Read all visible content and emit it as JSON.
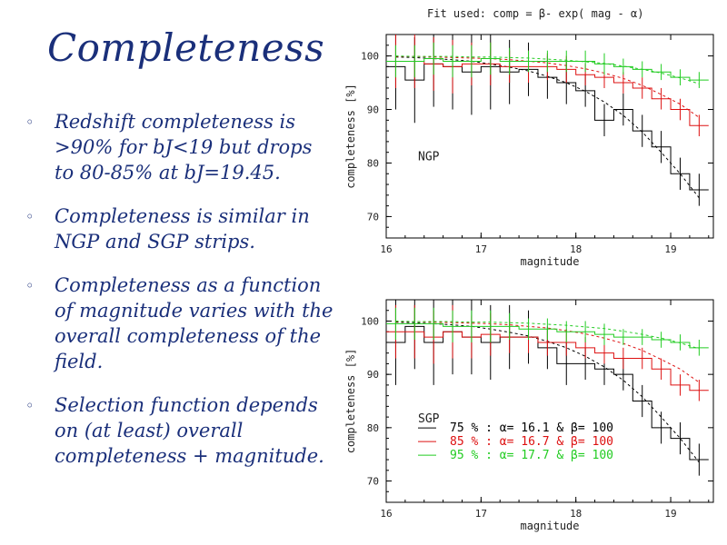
{
  "slide": {
    "title": "Completeness",
    "bullets": [
      "Redshift completeness is >90% for bJ<19 but drops to 80-85% at bJ=19.45.",
      "Completeness is similar in NGP and SGP strips.",
      "Completeness as a function of magnitude varies with the overall completeness of the field.",
      "Selection function depends on (at least) overall completeness + magnitude."
    ]
  },
  "figure_caption": "Fit used: comp = β- exp( mag - α)",
  "colors": {
    "black": "#000000",
    "red": "#dd1010",
    "green": "#22cc22",
    "text": "#1a2f7a"
  },
  "chart_data": [
    {
      "type": "line",
      "panel": "NGP",
      "xlabel": "magnitude",
      "ylabel": "completeness [%]",
      "xlim": [
        16,
        19.45
      ],
      "ylim": [
        66,
        104
      ],
      "xticks": [
        16,
        17,
        18,
        19
      ],
      "yticks": [
        70,
        80,
        90,
        100
      ],
      "series": [
        {
          "color": "black",
          "x": [
            16.1,
            16.3,
            16.5,
            16.7,
            16.9,
            17.1,
            17.3,
            17.5,
            17.7,
            17.9,
            18.1,
            18.3,
            18.5,
            18.7,
            18.9,
            19.1,
            19.3
          ],
          "y": [
            98,
            95.5,
            98.5,
            98,
            97,
            98,
            97,
            97.5,
            96,
            95,
            93.5,
            88,
            90,
            86,
            83,
            78,
            75
          ],
          "err": [
            8,
            8,
            8,
            8,
            8,
            8,
            6,
            5,
            4,
            4,
            3,
            3,
            3,
            3,
            3,
            3,
            3
          ],
          "fit": [
            99.8,
            99.7,
            99.5,
            99.3,
            99.0,
            98.5,
            97.9,
            97.2,
            96.2,
            95.0,
            93.4,
            91.4,
            88.9,
            85.8,
            82.0,
            78.0,
            73.5
          ]
        },
        {
          "color": "red",
          "x": [
            16.1,
            16.3,
            16.5,
            16.7,
            16.9,
            17.1,
            17.3,
            17.5,
            17.7,
            17.9,
            18.1,
            18.3,
            18.5,
            18.7,
            18.9,
            19.1,
            19.3
          ],
          "y": [
            99,
            99,
            98.5,
            98,
            98.5,
            98.5,
            98,
            98,
            98,
            97.5,
            96.5,
            96,
            95,
            94,
            92,
            90,
            87
          ],
          "err": [
            5,
            5,
            5,
            5,
            4,
            4,
            3,
            3,
            2.5,
            2.5,
            2,
            2,
            2,
            2,
            2,
            2,
            2
          ],
          "fit": [
            99.9,
            99.9,
            99.8,
            99.7,
            99.6,
            99.5,
            99.3,
            99.0,
            98.7,
            98.2,
            97.6,
            96.8,
            95.8,
            94.5,
            92.8,
            91.0,
            88.5
          ]
        },
        {
          "color": "green",
          "x": [
            16.1,
            16.3,
            16.5,
            16.7,
            16.9,
            17.1,
            17.3,
            17.5,
            17.7,
            17.9,
            18.1,
            18.3,
            18.5,
            18.7,
            18.9,
            19.1,
            19.3
          ],
          "y": [
            99,
            99,
            99.5,
            99,
            99,
            99.5,
            99,
            99,
            99,
            99,
            99,
            98.5,
            98,
            97.5,
            97,
            96,
            95.5
          ],
          "err": [
            3,
            3,
            3,
            3,
            3,
            3,
            2.5,
            2,
            2,
            2,
            2,
            2,
            1.5,
            1.5,
            1.5,
            1.5,
            1.5
          ],
          "fit": [
            100,
            99.9,
            99.9,
            99.9,
            99.8,
            99.8,
            99.7,
            99.6,
            99.4,
            99.2,
            98.9,
            98.6,
            98.1,
            97.5,
            96.8,
            95.9,
            94.8
          ]
        }
      ]
    },
    {
      "type": "line",
      "panel": "SGP",
      "xlabel": "magnitude",
      "ylabel": "completeness [%]",
      "xlim": [
        16,
        19.45
      ],
      "ylim": [
        66,
        104
      ],
      "xticks": [
        16,
        17,
        18,
        19
      ],
      "yticks": [
        70,
        80,
        90,
        100
      ],
      "legend": [
        {
          "color": "black",
          "label": "75 % : α= 16.1 & β= 100"
        },
        {
          "color": "red",
          "label": "85 % : α= 16.7 & β= 100"
        },
        {
          "color": "green",
          "label": "95 % : α= 17.7 & β= 100"
        }
      ],
      "series": [
        {
          "color": "black",
          "x": [
            16.1,
            16.3,
            16.5,
            16.7,
            16.9,
            17.1,
            17.3,
            17.5,
            17.7,
            17.9,
            18.1,
            18.3,
            18.5,
            18.7,
            18.9,
            19.1,
            19.3
          ],
          "y": [
            96,
            99,
            96,
            98,
            97,
            96,
            97,
            97,
            95,
            92,
            92,
            91,
            90,
            85,
            80,
            78,
            74
          ],
          "err": [
            8,
            8,
            8,
            8,
            7,
            7,
            6,
            5,
            4,
            4,
            3,
            3,
            3,
            3,
            3,
            3,
            3
          ],
          "fit": [
            99.8,
            99.7,
            99.5,
            99.3,
            99.0,
            98.5,
            97.9,
            97.2,
            96.2,
            95.0,
            93.4,
            91.4,
            88.9,
            85.8,
            82.0,
            78.0,
            73.5
          ]
        },
        {
          "color": "red",
          "x": [
            16.1,
            16.3,
            16.5,
            16.7,
            16.9,
            17.1,
            17.3,
            17.5,
            17.7,
            17.9,
            18.1,
            18.3,
            18.5,
            18.7,
            18.9,
            19.1,
            19.3
          ],
          "y": [
            98,
            98,
            97,
            98,
            97,
            97.5,
            97,
            97,
            96,
            96,
            95,
            94,
            93,
            93,
            91,
            88,
            87
          ],
          "err": [
            5,
            5,
            5,
            5,
            4,
            4,
            3,
            3,
            2.5,
            2.5,
            2,
            2,
            2,
            2,
            2,
            2,
            2
          ],
          "fit": [
            99.9,
            99.9,
            99.8,
            99.7,
            99.6,
            99.5,
            99.3,
            99.0,
            98.7,
            98.2,
            97.6,
            96.8,
            95.8,
            94.5,
            92.8,
            91.0,
            88.5
          ]
        },
        {
          "color": "green",
          "x": [
            16.1,
            16.3,
            16.5,
            16.7,
            16.9,
            17.1,
            17.3,
            17.5,
            17.7,
            17.9,
            18.1,
            18.3,
            18.5,
            18.7,
            18.9,
            19.1,
            19.3
          ],
          "y": [
            99.5,
            99.5,
            99.5,
            99,
            99,
            99,
            99,
            98.5,
            98.5,
            98,
            98,
            97.5,
            97,
            97,
            96.5,
            96,
            95
          ],
          "err": [
            3,
            3,
            3,
            3,
            3,
            3,
            2.5,
            2,
            2,
            2,
            2,
            2,
            1.5,
            1.5,
            1.5,
            1.5,
            1.5
          ],
          "fit": [
            100,
            99.9,
            99.9,
            99.9,
            99.8,
            99.8,
            99.7,
            99.6,
            99.4,
            99.2,
            98.9,
            98.6,
            98.1,
            97.5,
            96.8,
            95.9,
            94.8
          ]
        }
      ]
    }
  ]
}
